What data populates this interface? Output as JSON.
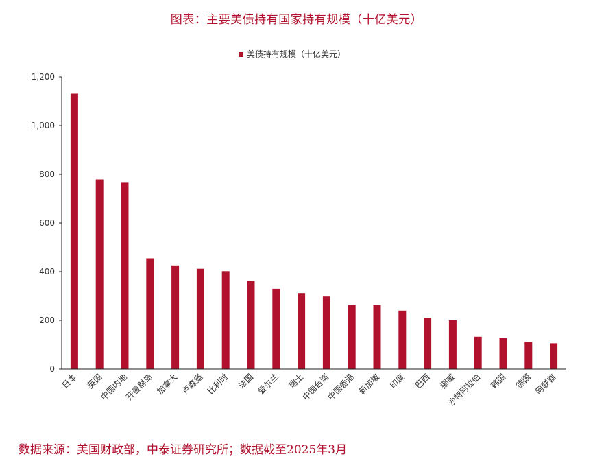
{
  "header": {
    "title": "图表：主要美债持有国家持有规模（十亿美元）"
  },
  "footer": {
    "source": "数据来源：美国财政部，中泰证券研究所；数据截至2025年3月"
  },
  "colors": {
    "bar": "#b0122e",
    "title": "#b0122e",
    "axis": "#222222",
    "text": "#333333"
  },
  "chart_data": {
    "type": "bar",
    "title": "",
    "xlabel": "",
    "ylabel": "",
    "legend": {
      "position": "top-center",
      "entries": [
        "美债持有规模（十亿美元）"
      ]
    },
    "grid": false,
    "ylim": [
      0,
      1200
    ],
    "yticks": [
      0,
      200,
      400,
      600,
      800,
      1000,
      1200
    ],
    "ytick_labels": [
      "0",
      "200",
      "400",
      "600",
      "800",
      "1,000",
      "1,200"
    ],
    "categories": [
      "日本",
      "英国",
      "中国内地",
      "开曼群岛",
      "加拿大",
      "卢森堡",
      "比利时",
      "法国",
      "爱尔兰",
      "瑞士",
      "中国台湾",
      "中国香港",
      "新加坡",
      "印度",
      "巴西",
      "挪威",
      "沙特阿拉伯",
      "韩国",
      "德国",
      "阿联酋"
    ],
    "series": [
      {
        "name": "美债持有规模（十亿美元）",
        "values": [
          1131,
          779,
          765,
          455,
          426,
          412,
          402,
          362,
          330,
          312,
          298,
          263,
          263,
          240,
          210,
          200,
          133,
          127,
          112,
          106
        ]
      }
    ]
  }
}
